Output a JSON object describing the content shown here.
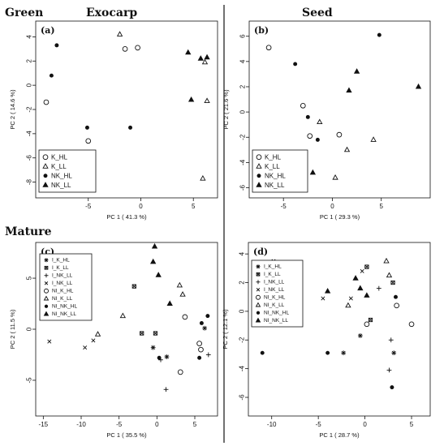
{
  "headers": {
    "row1_group": "Green",
    "col1": "Exocarp",
    "col2": "Seed",
    "row2_group": "Mature"
  },
  "chart_data": [
    {
      "type": "scatter",
      "panel_label": "(a)",
      "xlabel": "PC 1 ( 41.3 %)",
      "ylabel": "PC 2 ( 14.6 %)",
      "xlim": [
        -10,
        7.3
      ],
      "ylim": [
        -9.3,
        5.3
      ],
      "xticks": [
        -5,
        0,
        5
      ],
      "xtick_labels": [
        "-5",
        "0",
        "5"
      ],
      "yticks": [
        4,
        2,
        0,
        -2,
        -4,
        -6,
        -8
      ],
      "ytick_labels": [
        "4",
        "2",
        "0",
        "-2",
        "-4",
        "-6",
        "-8"
      ],
      "legend_loc": "bottom-left",
      "series": [
        {
          "name": "K_HL",
          "marker": "open-circle",
          "points": [
            [
              -1.5,
              3.0
            ],
            [
              -0.3,
              3.1
            ],
            [
              -9.0,
              -1.4
            ],
            [
              -5.0,
              -4.6
            ]
          ]
        },
        {
          "name": "K_LL",
          "marker": "open-triangle",
          "points": [
            [
              -2.0,
              4.2
            ],
            [
              6.1,
              1.9
            ],
            [
              6.3,
              -1.3
            ],
            [
              5.9,
              -7.7
            ]
          ]
        },
        {
          "name": "NK_HL",
          "marker": "filled-circle",
          "points": [
            [
              -8.0,
              3.3
            ],
            [
              -8.5,
              0.8
            ],
            [
              -5.1,
              -3.5
            ],
            [
              -1.0,
              -3.5
            ]
          ]
        },
        {
          "name": "NK_LL",
          "marker": "filled-triangle",
          "points": [
            [
              4.5,
              2.7
            ],
            [
              5.7,
              2.2
            ],
            [
              6.3,
              2.3
            ],
            [
              4.8,
              -1.2
            ]
          ]
        }
      ]
    },
    {
      "type": "scatter",
      "panel_label": "(b)",
      "xlabel": "PC 1 ( 29.3 %)",
      "ylabel": "PC 2 ( 21.6 %)",
      "xlim": [
        -8.5,
        10
      ],
      "ylim": [
        -6.8,
        7.2
      ],
      "xticks": [
        -5,
        0,
        5
      ],
      "xtick_labels": [
        "-5",
        "0",
        "5"
      ],
      "yticks": [
        6,
        4,
        2,
        0,
        -2,
        -4,
        -6
      ],
      "ytick_labels": [
        "6",
        "4",
        "2",
        "0",
        "-2",
        "-4",
        "-6"
      ],
      "legend_loc": "bottom-left",
      "series": [
        {
          "name": "K_HL",
          "marker": "open-circle",
          "points": [
            [
              -6.5,
              5.1
            ],
            [
              -3.0,
              0.5
            ],
            [
              -2.3,
              -1.9
            ],
            [
              0.7,
              -1.8
            ]
          ]
        },
        {
          "name": "K_LL",
          "marker": "open-triangle",
          "points": [
            [
              -1.3,
              -0.8
            ],
            [
              1.5,
              -3.0
            ],
            [
              4.2,
              -2.2
            ],
            [
              0.3,
              -5.2
            ]
          ]
        },
        {
          "name": "NK_HL",
          "marker": "filled-circle",
          "points": [
            [
              4.8,
              6.1
            ],
            [
              -3.8,
              3.8
            ],
            [
              -2.5,
              -0.4
            ],
            [
              -1.5,
              -2.2
            ]
          ]
        },
        {
          "name": "NK_LL",
          "marker": "filled-triangle",
          "points": [
            [
              2.5,
              3.2
            ],
            [
              1.7,
              1.7
            ],
            [
              8.8,
              2.0
            ],
            [
              -2.0,
              -4.8
            ]
          ]
        }
      ]
    },
    {
      "type": "scatter",
      "panel_label": "(c)",
      "xlabel": "PC 1 ( 35.5 %)",
      "ylabel": "PC 2 ( 11.5 %)",
      "xlim": [
        -16,
        8
      ],
      "ylim": [
        -8.5,
        8.5
      ],
      "xticks": [
        -15,
        -10,
        -5,
        0,
        5
      ],
      "xtick_labels": [
        "-15",
        "-10",
        "-5",
        "0",
        "5"
      ],
      "yticks": [
        5,
        0,
        -5
      ],
      "ytick_labels": [
        "5",
        "0",
        "-5"
      ],
      "legend_loc": "top-left",
      "series": [
        {
          "name": "I_K_HL",
          "marker": "asterisk",
          "points": [
            [
              -0.5,
              -1.8
            ],
            [
              1.3,
              -2.7
            ],
            [
              6.3,
              0.1
            ]
          ]
        },
        {
          "name": "I_K_LL",
          "marker": "boxed-cross",
          "points": [
            [
              -3.0,
              4.2
            ],
            [
              -2.0,
              -0.4
            ],
            [
              -0.2,
              -0.4
            ]
          ]
        },
        {
          "name": "I_NK_LL",
          "marker": "plus",
          "points": [
            [
              0.5,
              -3.0
            ],
            [
              1.2,
              -5.9
            ],
            [
              6.8,
              -2.5
            ]
          ]
        },
        {
          "name": "I_NK_LL",
          "marker": "cross",
          "points": [
            [
              -14.2,
              -1.2
            ],
            [
              -9.5,
              -1.8
            ],
            [
              -8.4,
              -1.1
            ]
          ]
        },
        {
          "name": "NI_K_HL",
          "marker": "open-circle",
          "points": [
            [
              3.7,
              1.2
            ],
            [
              5.6,
              -1.4
            ],
            [
              3.1,
              -4.2
            ],
            [
              5.8,
              -2.0
            ]
          ]
        },
        {
          "name": "NI_K_LL",
          "marker": "open-triangle",
          "points": [
            [
              3.0,
              4.3
            ],
            [
              3.4,
              3.4
            ],
            [
              -4.5,
              1.3
            ],
            [
              -7.8,
              -0.5
            ]
          ]
        },
        {
          "name": "NI_NK_HL",
          "marker": "filled-circle",
          "points": [
            [
              6.7,
              1.3
            ],
            [
              5.9,
              0.6
            ],
            [
              0.3,
              -2.8
            ],
            [
              5.6,
              -2.8
            ]
          ]
        },
        {
          "name": "NI_NK_LL",
          "marker": "filled-triangle",
          "points": [
            [
              -0.5,
              6.6
            ],
            [
              0.2,
              5.3
            ],
            [
              -0.3,
              8.1
            ],
            [
              1.7,
              2.5
            ]
          ]
        }
      ]
    },
    {
      "type": "scatter",
      "panel_label": "(d)",
      "xlabel": "PC 1 ( 28.7 %)",
      "ylabel": "PC 2 ( 12.1 %)",
      "xlim": [
        -12.5,
        7
      ],
      "ylim": [
        -7.3,
        4.8
      ],
      "xticks": [
        -10,
        -5,
        0,
        5
      ],
      "xtick_labels": [
        "-10",
        "-5",
        "0",
        "5"
      ],
      "yticks": [
        4,
        2,
        0,
        -2,
        -4,
        -6
      ],
      "ytick_labels": [
        "4",
        "2",
        "0",
        "-2",
        "-4",
        "-6"
      ],
      "legend_loc": "top-left",
      "series": [
        {
          "name": "I_K_HL",
          "marker": "asterisk",
          "points": [
            [
              -0.5,
              -1.7
            ],
            [
              -2.3,
              -2.9
            ],
            [
              3.1,
              -2.9
            ]
          ]
        },
        {
          "name": "I_K_LL",
          "marker": "boxed-cross",
          "points": [
            [
              0.2,
              3.1
            ],
            [
              0.6,
              -0.6
            ],
            [
              3.0,
              2.0
            ]
          ]
        },
        {
          "name": "I_NK_LL",
          "marker": "plus",
          "points": [
            [
              1.5,
              1.6
            ],
            [
              2.8,
              -2.0
            ],
            [
              2.6,
              -4.1
            ]
          ]
        },
        {
          "name": "I_NK_LL",
          "marker": "cross",
          "points": [
            [
              -9.8,
              3.5
            ],
            [
              -4.5,
              0.9
            ],
            [
              -1.5,
              0.9
            ],
            [
              -0.3,
              2.8
            ]
          ]
        },
        {
          "name": "NI_K_HL",
          "marker": "open-circle",
          "points": [
            [
              3.4,
              0.4
            ],
            [
              0.2,
              -0.9
            ],
            [
              5.0,
              -0.9
            ]
          ]
        },
        {
          "name": "NI_K_LL",
          "marker": "open-triangle",
          "points": [
            [
              2.3,
              3.5
            ],
            [
              2.6,
              2.5
            ],
            [
              -1.8,
              0.4
            ]
          ]
        },
        {
          "name": "NI_NK_HL",
          "marker": "filled-circle",
          "points": [
            [
              -11.0,
              -2.9
            ],
            [
              -4.0,
              -2.9
            ],
            [
              2.9,
              -5.3
            ],
            [
              3.3,
              1.0
            ]
          ]
        },
        {
          "name": "NI_NK_LL",
          "marker": "filled-triangle",
          "points": [
            [
              -4.0,
              1.4
            ],
            [
              0.2,
              1.1
            ],
            [
              -1.0,
              2.3
            ],
            [
              -0.5,
              1.6
            ]
          ]
        }
      ]
    }
  ]
}
